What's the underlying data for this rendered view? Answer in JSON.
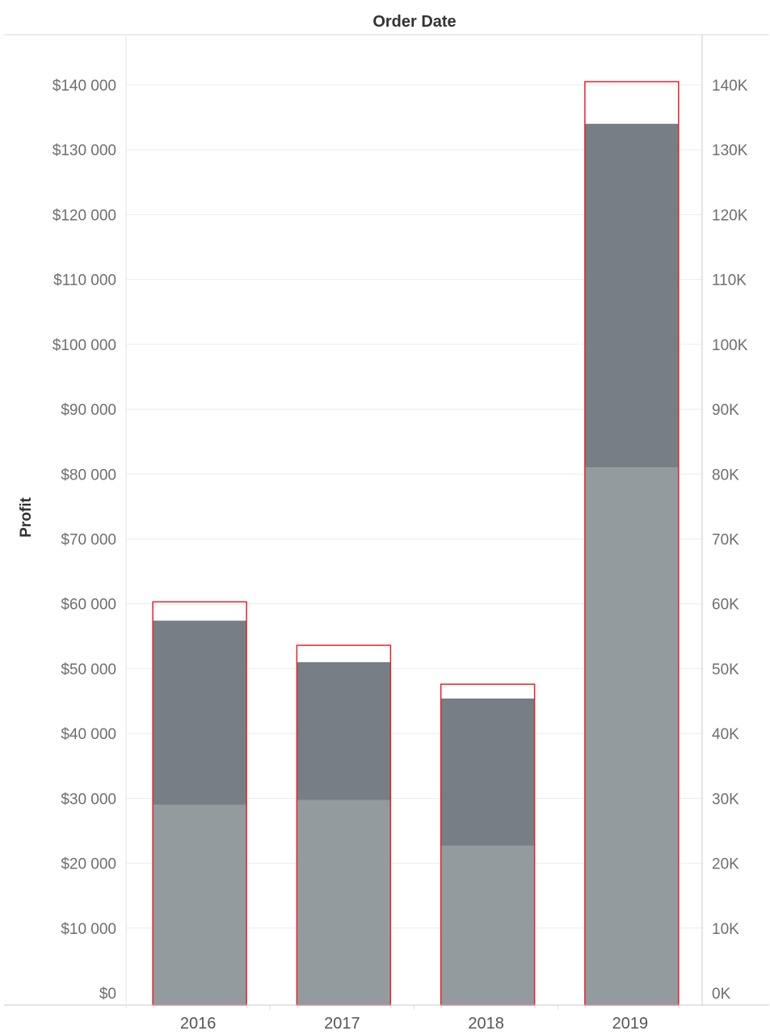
{
  "chart_data": {
    "type": "bar",
    "column_header": "Order Date",
    "ylabel": "Profit",
    "categories": [
      "2016",
      "2017",
      "2018",
      "2019"
    ],
    "series": [
      {
        "values": [
          29000,
          29700,
          22700,
          81000
        ]
      },
      {
        "values": [
          28400,
          21300,
          22700,
          53000
        ]
      }
    ],
    "target_values": [
      60300,
      53600,
      47600,
      140500
    ],
    "ylim": [
      0,
      148000
    ],
    "left_ticks": [
      {
        "value": 0,
        "label": "$0"
      },
      {
        "value": 10000,
        "label": "$10 000"
      },
      {
        "value": 20000,
        "label": "$20 000"
      },
      {
        "value": 30000,
        "label": "$30 000"
      },
      {
        "value": 40000,
        "label": "$40 000"
      },
      {
        "value": 50000,
        "label": "$50 000"
      },
      {
        "value": 60000,
        "label": "$60 000"
      },
      {
        "value": 70000,
        "label": "$70 000"
      },
      {
        "value": 80000,
        "label": "$80 000"
      },
      {
        "value": 90000,
        "label": "$90 000"
      },
      {
        "value": 100000,
        "label": "$100 000"
      },
      {
        "value": 110000,
        "label": "$110 000"
      },
      {
        "value": 120000,
        "label": "$120 000"
      },
      {
        "value": 130000,
        "label": "$130 000"
      },
      {
        "value": 140000,
        "label": "$140 000"
      }
    ],
    "right_ticks": [
      {
        "value": 0,
        "label": "0K"
      },
      {
        "value": 10000,
        "label": "10K"
      },
      {
        "value": 20000,
        "label": "20K"
      },
      {
        "value": 30000,
        "label": "30K"
      },
      {
        "value": 40000,
        "label": "40K"
      },
      {
        "value": 50000,
        "label": "50K"
      },
      {
        "value": 60000,
        "label": "60K"
      },
      {
        "value": 70000,
        "label": "70K"
      },
      {
        "value": 80000,
        "label": "80K"
      },
      {
        "value": 90000,
        "label": "90K"
      },
      {
        "value": 100000,
        "label": "100K"
      },
      {
        "value": 110000,
        "label": "110K"
      },
      {
        "value": 120000,
        "label": "120K"
      },
      {
        "value": 130000,
        "label": "130K"
      },
      {
        "value": 140000,
        "label": "140K"
      }
    ],
    "grid": true,
    "legend": "none",
    "colors": {
      "segment_lower": "#939b9f",
      "segment_upper": "#757f85",
      "target_outline": "#e8212f",
      "gridline": "#ececec",
      "axis_line": "#c8c8c8"
    }
  }
}
